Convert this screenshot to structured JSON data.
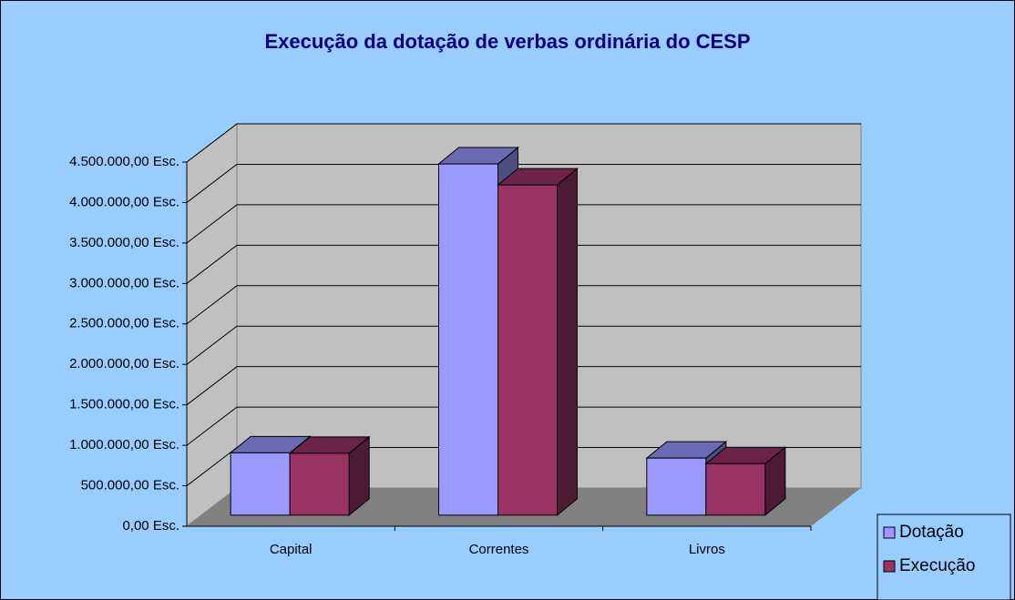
{
  "chart_data": {
    "type": "bar3d",
    "title": "Execução da dotação de verbas ordinária do CESP",
    "categories": [
      "Capital",
      "Correntes",
      "Livros"
    ],
    "series": [
      {
        "name": "Dotação",
        "color": "#9999ff",
        "values": [
          770000,
          4340000,
          705000
        ]
      },
      {
        "name": "Execução",
        "color": "#993366",
        "values": [
          765000,
          4080000,
          636000
        ]
      }
    ],
    "ylim": [
      0,
      4500000
    ],
    "yticks": [
      {
        "value": 0,
        "label": "0,00 Esc."
      },
      {
        "value": 500000,
        "label": "500.000,00 Esc."
      },
      {
        "value": 1000000,
        "label": "1.000.000,00 Esc."
      },
      {
        "value": 1500000,
        "label": "1.500.000,00 Esc."
      },
      {
        "value": 2000000,
        "label": "2.000.000,00 Esc."
      },
      {
        "value": 2500000,
        "label": "2.500.000,00 Esc."
      },
      {
        "value": 3000000,
        "label": "3.000.000,00 Esc."
      },
      {
        "value": 3500000,
        "label": "3.500.000,00 Esc."
      },
      {
        "value": 4000000,
        "label": "4.000.000,00 Esc."
      },
      {
        "value": 4500000,
        "label": "4.500.000,00 Esc."
      }
    ],
    "grid": true,
    "legend": "right"
  }
}
